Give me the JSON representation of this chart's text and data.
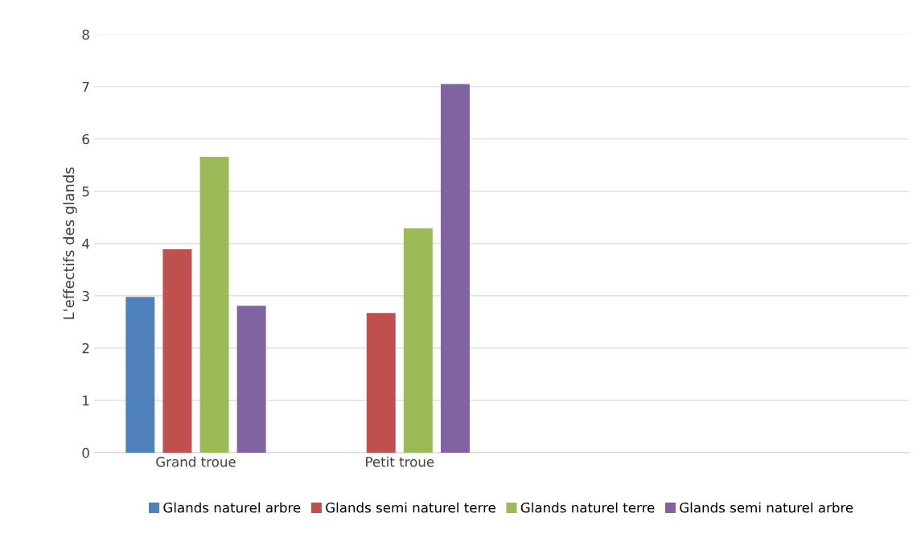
{
  "chart_data": {
    "type": "bar",
    "ylabel": "L'effectifs des glands",
    "categories": [
      "Grand troue",
      "Petit troue",
      null,
      null
    ],
    "series": [
      {
        "name": "Glands naturel arbre",
        "color": "#4f81bd",
        "values": [
          2.98,
          0,
          null,
          null
        ]
      },
      {
        "name": "Glands semi naturel terre",
        "color": "#c0504d",
        "values": [
          3.89,
          2.67,
          null,
          null
        ]
      },
      {
        "name": "Glands naturel terre",
        "color": "#9bbb59",
        "values": [
          5.66,
          4.29,
          null,
          null
        ]
      },
      {
        "name": "Glands semi naturel arbre",
        "color": "#8064a2",
        "values": [
          2.81,
          7.05,
          null,
          null
        ]
      }
    ],
    "ylim": [
      0,
      8
    ],
    "yticks": [
      0,
      1,
      2,
      3,
      4,
      5,
      6,
      7,
      8
    ],
    "grid": "y",
    "legend": "bottom"
  }
}
